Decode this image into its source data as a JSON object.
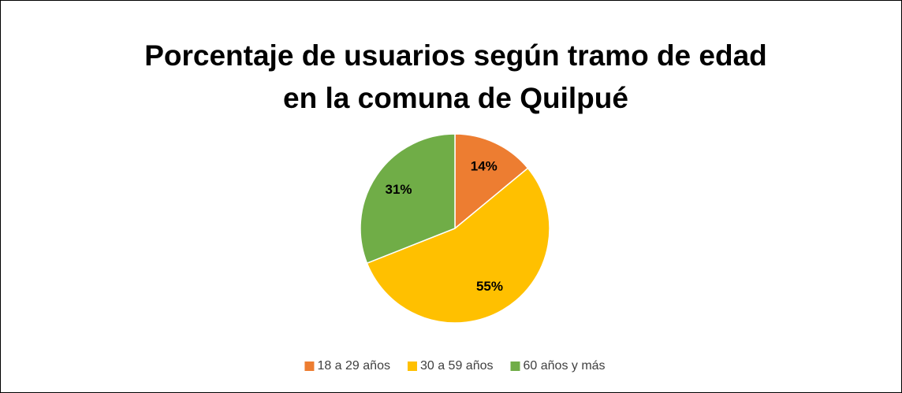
{
  "chart_data": {
    "type": "pie",
    "title": "Porcentaje de usuarios según tramo de edad en la comuna de Quilpué",
    "categories": [
      "18 a 29 años",
      "30 a 59 años",
      "60 años y más"
    ],
    "values": [
      14,
      55,
      31
    ],
    "value_labels": [
      "14%",
      "55%",
      "31%"
    ],
    "colors": [
      "#ED7D31",
      "#FFC000",
      "#70AD47"
    ],
    "legend": "bottom"
  }
}
